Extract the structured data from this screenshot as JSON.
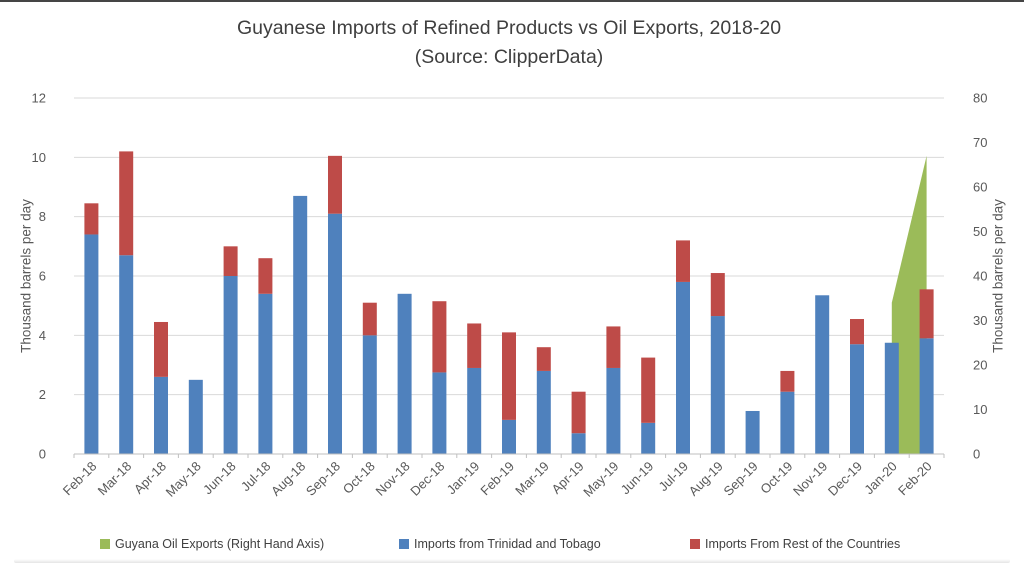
{
  "title": {
    "line1": "Guyanese Imports of Refined Products vs Oil Exports, 2018-20",
    "line2": "(Source: ClipperData)"
  },
  "left_axis": {
    "title": "Thousand barrels per day",
    "min": 0,
    "max": 12,
    "step": 2,
    "ticks": [
      "0",
      "2",
      "4",
      "6",
      "8",
      "10",
      "12"
    ]
  },
  "right_axis": {
    "title": "Thousand barrels per day",
    "min": 0,
    "max": 80,
    "step": 10,
    "ticks": [
      "0",
      "10",
      "20",
      "30",
      "40",
      "50",
      "60",
      "70",
      "80"
    ]
  },
  "colors": {
    "bar_blue": "#4F81BD",
    "bar_red": "#BE4B48",
    "area_green": "#9BBB59",
    "gridline": "#D9D9D9",
    "axis_line": "#BFBFBF",
    "tick_text": "#595959",
    "title_text": "#3F3F3F"
  },
  "legend": {
    "items": [
      {
        "label": "Guyana Oil Exports (Right Hand Axis)",
        "color": "#9BBB59",
        "x": 100
      },
      {
        "label": "Imports from Trinidad and Tobago",
        "color": "#4F81BD",
        "x": 399
      },
      {
        "label": "Imports From Rest of the Countries",
        "color": "#BE4B48",
        "x": 690
      }
    ]
  },
  "chart_data": {
    "type": "bar",
    "subtype": "stacked-bar-with-area-overlay",
    "title": "Guyanese Imports of Refined Products vs Oil Exports, 2018-20 (Source: ClipperData)",
    "categories": [
      "Feb-18",
      "Mar-18",
      "Apr-18",
      "May-18",
      "Jun-18",
      "Jul-18",
      "Aug-18",
      "Sep-18",
      "Oct-18",
      "Nov-18",
      "Dec-18",
      "Jan-19",
      "Feb-19",
      "Mar-19",
      "Apr-19",
      "May-19",
      "Jun-19",
      "Jul-19",
      "Aug-19",
      "Sep-19",
      "Oct-19",
      "Nov-19",
      "Dec-19",
      "Jan-20",
      "Feb-20"
    ],
    "series": [
      {
        "name": "Imports from Trinidad and Tobago",
        "type": "bar",
        "stack": "imports",
        "axis": "left",
        "color": "#4F81BD",
        "values": [
          7.4,
          6.7,
          2.6,
          2.5,
          6.0,
          5.4,
          8.7,
          8.1,
          4.0,
          5.4,
          2.75,
          2.9,
          1.15,
          2.8,
          0.7,
          2.9,
          1.05,
          5.8,
          4.65,
          1.45,
          2.1,
          5.35,
          3.7,
          3.75,
          3.9
        ]
      },
      {
        "name": "Imports From Rest of the Countries",
        "type": "bar",
        "stack": "imports",
        "axis": "left",
        "color": "#BE4B48",
        "values": [
          1.05,
          3.5,
          1.85,
          0,
          1.0,
          1.2,
          0,
          1.95,
          1.1,
          0,
          2.4,
          1.5,
          2.95,
          0.8,
          1.4,
          1.4,
          2.2,
          1.4,
          1.45,
          0,
          0.7,
          0,
          0.85,
          0,
          1.65
        ]
      },
      {
        "name": "Guyana Oil Exports (Right Hand Axis)",
        "type": "area",
        "axis": "right",
        "color": "#9BBB59",
        "values": [
          null,
          null,
          null,
          null,
          null,
          null,
          null,
          null,
          null,
          null,
          null,
          null,
          null,
          null,
          null,
          null,
          null,
          null,
          null,
          null,
          null,
          null,
          null,
          34,
          67
        ]
      }
    ],
    "ylabel_left": "Thousand barrels per day",
    "ylabel_right": "Thousand barrels per day",
    "ylim_left": [
      0,
      12
    ],
    "ylim_right": [
      0,
      80
    ],
    "grid": true,
    "legend_position": "bottom"
  }
}
